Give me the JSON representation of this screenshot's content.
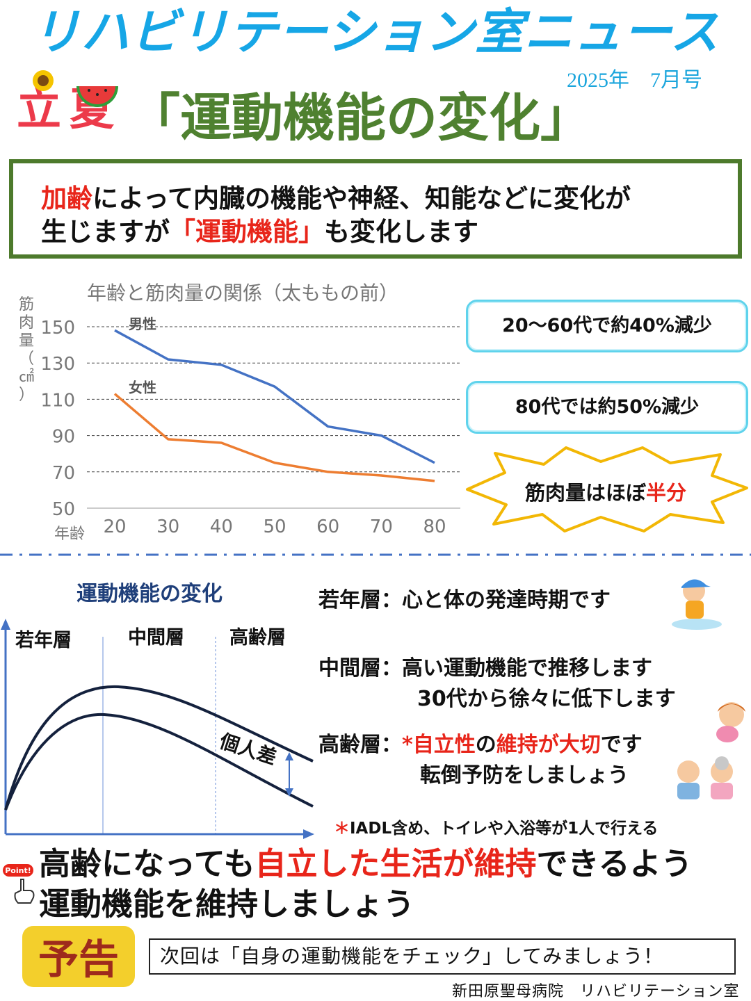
{
  "header": {
    "title": "リハビリテーション室ニュース",
    "issue_date": "2025年　7月号",
    "season_left": "立",
    "season_right": "夏",
    "main_title": "「運動機能の変化」"
  },
  "intro": {
    "line1_highlight": "加齢",
    "line1_rest": "によって内臓の機能や神経、知能などに変化が",
    "line2_start": "生じますが",
    "line2_highlight": "「運動機能」",
    "line2_end": "も変化します"
  },
  "chart_data": {
    "type": "line",
    "title": "年齢と筋肉量の関係（太ももの前）",
    "xlabel": "年齢",
    "ylabel": "筋肉量（㎠）",
    "categories": [
      20,
      30,
      40,
      50,
      60,
      70,
      80
    ],
    "ylim": [
      50,
      150
    ],
    "yticks": [
      150,
      130,
      110,
      90,
      70,
      50
    ],
    "grid": "dashed horizontal",
    "series": [
      {
        "name": "男性",
        "color": "#4472c4",
        "values": [
          148,
          132,
          129,
          117,
          95,
          90,
          75
        ]
      },
      {
        "name": "女性",
        "color": "#ed7d31",
        "values": [
          113,
          88,
          86,
          75,
          70,
          68,
          65
        ]
      }
    ]
  },
  "callouts": {
    "callout1": "20～60代で約40%減少",
    "callout2": "80代では約50%減少",
    "burst_start": "筋肉量はほぼ",
    "burst_highlight": "半分"
  },
  "lower": {
    "diagram_title": "運動機能の変化",
    "stage_young": "若年層",
    "stage_middle": "中間層",
    "stage_elder": "高齢層",
    "difference_label": "個人差",
    "young_label": "若年層：",
    "young_text": "心と体の発達時期です",
    "middle_label": "中間層：",
    "middle_text1": "高い運動機能で推移します",
    "middle_text2": "30代から徐々に低下します",
    "elder_label": "高齢層：",
    "elder_star": "*",
    "elder_highlight1": "自立性",
    "elder_mid": "の",
    "elder_highlight2": "維持が大切",
    "elder_end": "です",
    "elder_text2": "転倒予防をしましょう",
    "footnote_star": "＊",
    "footnote_text": "IADL含め、トイレや入浴等が1人で行える"
  },
  "conclusion": {
    "point_badge": "Point!",
    "line1_start": "高齢になっても",
    "line1_highlight": "自立した生活が維持",
    "line1_end": "できるよう",
    "line2": "運動機能を維持しましょう"
  },
  "footer": {
    "yokoku": "予告",
    "next_text": "次回は「自身の運動機能をチェック」してみましょう！",
    "org": "新田原聖母病院　リハビリテーション室"
  },
  "colors": {
    "title_blue": "#16a6e6",
    "title_green": "#4f8130",
    "highlight_red": "#e8251a",
    "men_line": "#4472c4",
    "women_line": "#ed7d31",
    "callout_border": "#5fd3ec",
    "burst_border": "#f2b705",
    "yokoku_bg": "#f3cf2c",
    "yokoku_text": "#9e2a1c"
  }
}
